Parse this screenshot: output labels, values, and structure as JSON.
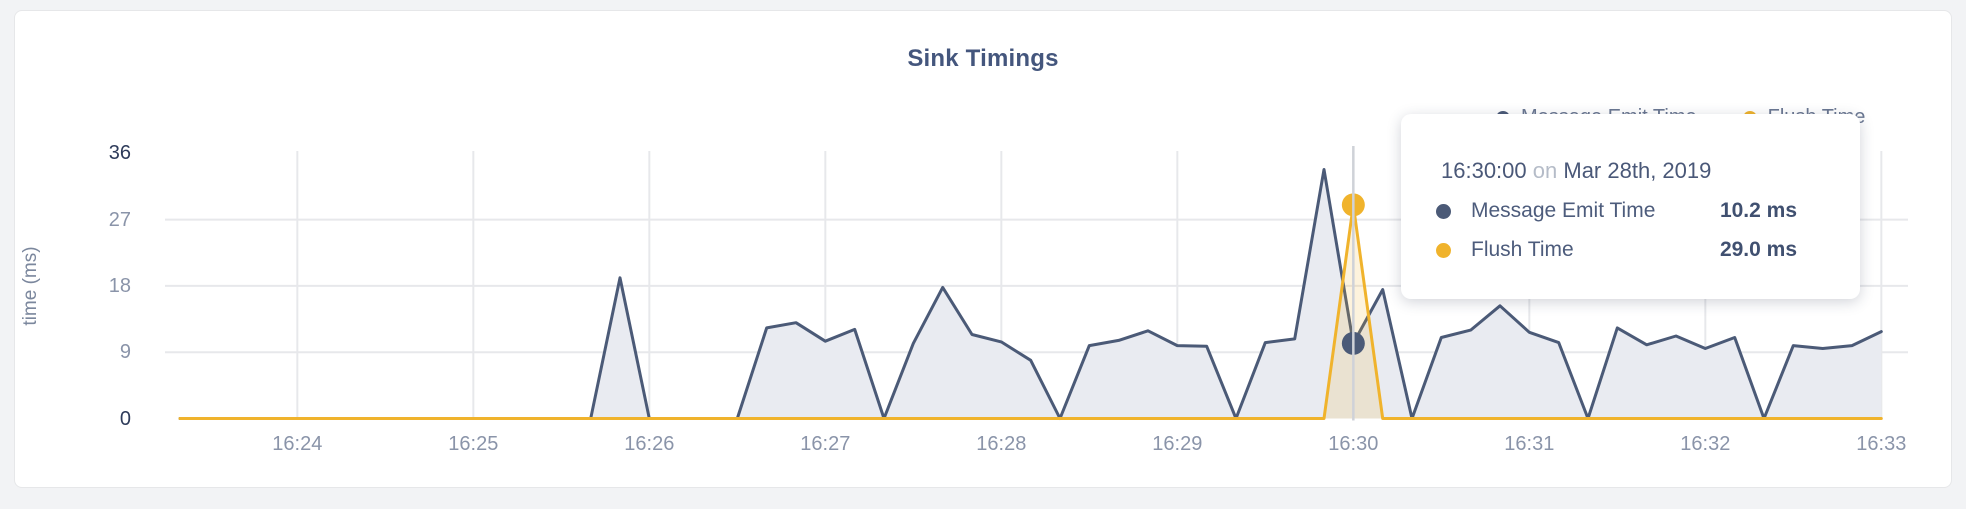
{
  "card": {
    "title": "Sink Timings"
  },
  "legend": {
    "items": [
      {
        "label": "Message Emit Time",
        "color": "#4b5a77"
      },
      {
        "label": "Flush Time",
        "color": "#f0b32c"
      }
    ]
  },
  "y_axis": {
    "title": "time (ms)",
    "ticks": [
      36,
      27,
      18,
      9,
      0
    ]
  },
  "x_axis": {
    "ticks": [
      "16:24",
      "16:25",
      "16:26",
      "16:27",
      "16:28",
      "16:29",
      "16:30",
      "16:31",
      "16:32",
      "16:33"
    ]
  },
  "tooltip": {
    "time": "16:30:00",
    "on_word": "on",
    "date": "Mar 28th, 2019",
    "rows": [
      {
        "label": "Message Emit Time",
        "value": "10.2 ms",
        "color": "#4b5a77"
      },
      {
        "label": "Flush Time",
        "value": "29.0 ms",
        "color": "#f0b32c"
      }
    ]
  },
  "chart_data": {
    "type": "area",
    "title": "Sink Timings",
    "xlabel": "",
    "ylabel": "time (ms)",
    "ylim": [
      0,
      36
    ],
    "grid": "on",
    "legend_position": "top-right",
    "x": [
      "16:23:20",
      "16:23:30",
      "16:23:40",
      "16:23:50",
      "16:24:00",
      "16:24:10",
      "16:24:20",
      "16:24:30",
      "16:24:40",
      "16:24:50",
      "16:25:00",
      "16:25:10",
      "16:25:20",
      "16:25:30",
      "16:25:40",
      "16:25:50",
      "16:26:00",
      "16:26:10",
      "16:26:20",
      "16:26:30",
      "16:26:40",
      "16:26:50",
      "16:27:00",
      "16:27:10",
      "16:27:20",
      "16:27:30",
      "16:27:40",
      "16:27:50",
      "16:28:00",
      "16:28:10",
      "16:28:20",
      "16:28:30",
      "16:28:40",
      "16:28:50",
      "16:29:00",
      "16:29:10",
      "16:29:20",
      "16:29:30",
      "16:29:40",
      "16:29:50",
      "16:30:00",
      "16:30:10",
      "16:30:20",
      "16:30:30",
      "16:30:40",
      "16:30:50",
      "16:31:00",
      "16:31:10",
      "16:31:20",
      "16:31:30",
      "16:31:40",
      "16:31:50",
      "16:32:00",
      "16:32:10",
      "16:32:20",
      "16:32:30",
      "16:32:40",
      "16:32:50",
      "16:33:00"
    ],
    "series": [
      {
        "name": "Message Emit Time",
        "color": "#4b5a77",
        "fill": "#e9ebf1",
        "values": [
          0,
          0,
          0,
          0,
          0,
          0,
          0,
          0,
          0,
          0,
          0,
          0,
          0,
          0,
          0,
          19.1,
          0,
          0,
          0,
          0,
          12.3,
          13.0,
          10.5,
          12.1,
          0,
          10.2,
          17.8,
          11.4,
          10.4,
          7.9,
          0,
          9.9,
          10.6,
          11.9,
          9.9,
          9.8,
          0,
          10.3,
          10.8,
          33.8,
          10.2,
          17.5,
          0,
          11.0,
          12.0,
          15.3,
          11.7,
          10.3,
          0,
          12.3,
          10.0,
          11.2,
          9.5,
          11.0,
          0,
          9.9,
          9.5,
          9.9,
          11.8
        ]
      },
      {
        "name": "Flush Time",
        "color": "#f0b32c",
        "fill": "rgba(240,179,44,0.16)",
        "values": [
          0,
          0,
          0,
          0,
          0,
          0,
          0,
          0,
          0,
          0,
          0,
          0,
          0,
          0,
          0,
          0,
          0,
          0,
          0,
          0,
          0,
          0,
          0,
          0,
          0,
          0,
          0,
          0,
          0,
          0,
          0,
          0,
          0,
          0,
          0,
          0,
          0,
          0,
          0,
          0,
          29.0,
          0,
          0,
          0,
          0,
          0,
          0,
          0,
          0,
          0,
          0,
          0,
          0,
          0,
          0,
          0,
          0,
          0,
          0
        ]
      }
    ],
    "highlight": {
      "time": "16:30:00",
      "message_emit_ms": 10.2,
      "flush_ms": 29.0
    }
  }
}
